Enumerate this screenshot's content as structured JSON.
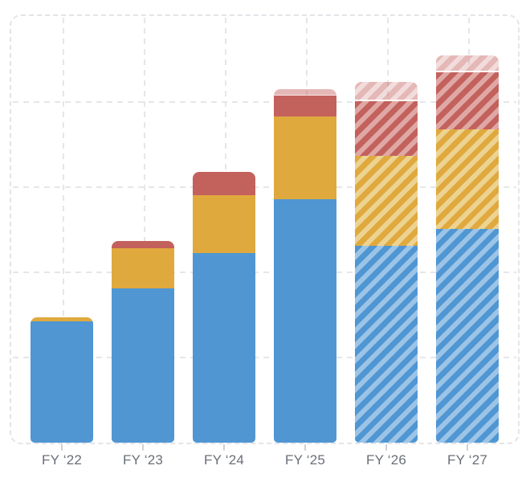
{
  "chart_data": {
    "type": "bar",
    "stacked": true,
    "title": "",
    "xlabel": "",
    "ylabel": "",
    "categories": [
      "FY ‘22",
      "FY ‘23",
      "FY ‘24",
      "FY ‘25",
      "FY ‘26",
      "FY ‘27"
    ],
    "y_units": "unlabeled axis; 1 unit = one horizontal gridline interval",
    "ylim": [
      0,
      5.0
    ],
    "series": [
      {
        "name": "blue-base-segment",
        "color": "#4f96d3",
        "stripe_color": "#9cc4e7",
        "values": [
          1.42,
          1.81,
          2.22,
          2.85,
          2.3,
          2.5
        ]
      },
      {
        "name": "gold-middle-segment",
        "color": "#e0a93e",
        "stripe_color": "#edd392",
        "values": [
          0.05,
          0.47,
          0.68,
          0.97,
          1.06,
          1.17
        ]
      },
      {
        "name": "red-top-segment",
        "color": "#c3615d",
        "stripe_color": "#dfa8a5",
        "values": [
          0.0,
          0.08,
          0.27,
          0.24,
          0.64,
          0.67
        ]
      },
      {
        "name": "red-overlay-cap",
        "color": "rgba(195,97,93,0.45)",
        "stripe_color": "rgba(195,97,93,0.22)",
        "values": [
          0.0,
          0.0,
          0.0,
          0.08,
          0.22,
          0.19
        ]
      }
    ],
    "totals": [
      1.47,
      2.36,
      3.17,
      4.14,
      4.22,
      4.53
    ],
    "hatched_categories": [
      false,
      false,
      false,
      false,
      true,
      true
    ],
    "cap_separator": [
      "none",
      "none",
      "none",
      "faint",
      "strong",
      "strong"
    ],
    "grid": {
      "style": "dashed",
      "horizontal_internal_lines": 4,
      "vertical_lines_at_bar_centers": true,
      "rounded_dashed_border": true
    },
    "legend": "none shown",
    "axis_tick_marks": "short gray tick below each bar center"
  },
  "colors": {
    "background": "#ffffff",
    "grid_line": "#e4e4e9",
    "tick_mark": "#cfd0d6",
    "axis_label_text": "#6a6f78",
    "blue": "#4f96d3",
    "gold": "#e0a93e",
    "red": "#c3615d",
    "separator_line": "#ffffff"
  }
}
